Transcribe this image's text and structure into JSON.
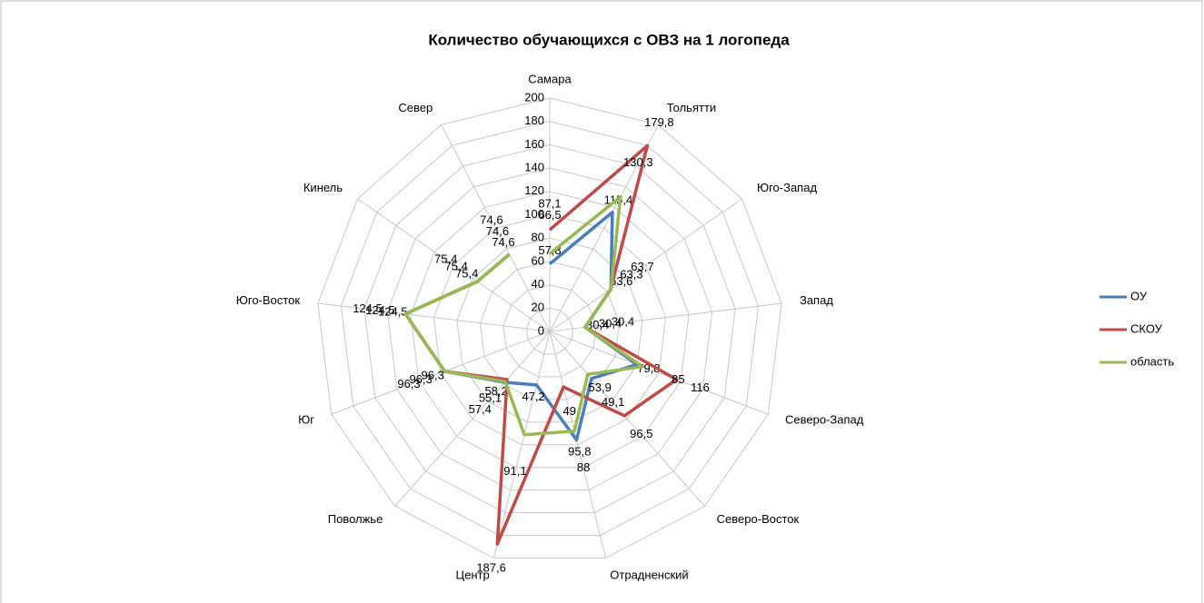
{
  "chart_data": {
    "type": "radar",
    "title": "Количество обучающихся с ОВЗ на 1 логопеда",
    "categories": [
      "Самара",
      "Тольятти",
      "Юго-Запад",
      "Запад",
      "Северо-Запад",
      "Северо-Восток",
      "Отрадненский",
      "Центр",
      "Поволжье",
      "Юг",
      "Юго-Восток",
      "Кинель",
      "Север"
    ],
    "ylim": [
      0,
      200
    ],
    "yticks": [
      0,
      20,
      40,
      60,
      80,
      100,
      120,
      140,
      160,
      180,
      200
    ],
    "grid": true,
    "legend": "right",
    "series": [
      {
        "name": "ОУ",
        "color": "#4a7ebb",
        "values": [
          57.8,
          115.4,
          63.6,
          30.4,
          79.8,
          53.9,
          95.8,
          47.2,
          58.2,
          96.3,
          124.5,
          75.4,
          74.6
        ],
        "value_labels": [
          "57,8",
          "115,4",
          "63,6",
          "30,4",
          "79,8",
          "53,9",
          "95,8",
          "47,2",
          "58,2",
          "96,3",
          "124,5",
          "75,4",
          "74,6"
        ]
      },
      {
        "name": "СКОУ",
        "color": "#be4b48",
        "values": [
          87.1,
          179.8,
          63.3,
          30.4,
          116,
          96.5,
          49,
          187.6,
          55.1,
          96.3,
          124.5,
          75.4,
          74.6
        ],
        "value_labels": [
          "87,1",
          "179,8",
          "63,3",
          "30,4",
          "116",
          "96,5",
          "49",
          "187,6",
          "55,1",
          "96,3",
          "124,5",
          "75,4",
          "74,6"
        ]
      },
      {
        "name": "область",
        "color": "#98b954",
        "values": [
          66.5,
          130.3,
          63.7,
          30.4,
          85,
          49.1,
          88,
          91.1,
          57.4,
          96.3,
          124.5,
          75.4,
          74.6
        ],
        "value_labels": [
          "66,5",
          "130,3",
          "63,7",
          "30,4",
          "85",
          "49,1",
          "88",
          "91,1",
          "57,4",
          "96,3",
          "124,5",
          "75,4",
          "74,6"
        ]
      }
    ]
  }
}
